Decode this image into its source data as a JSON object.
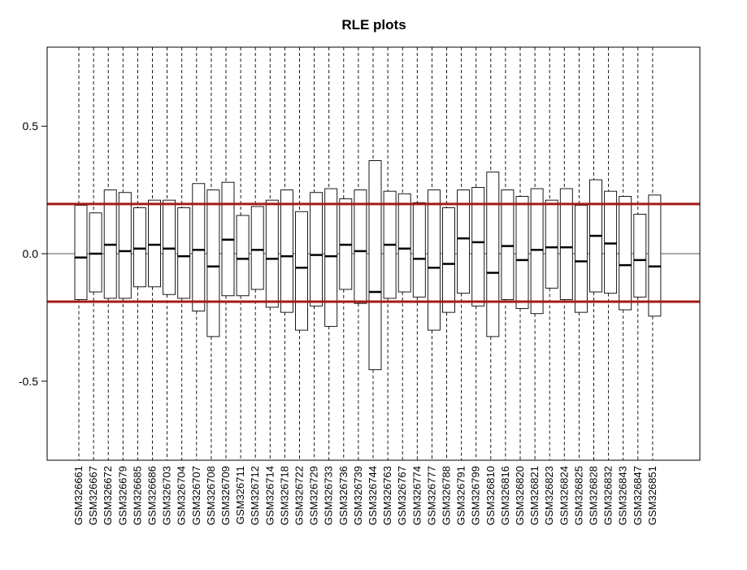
{
  "chart_data": {
    "type": "boxplot",
    "title": "RLE plots",
    "xlabel": "",
    "ylabel": "",
    "ylim": [
      -0.81,
      0.81
    ],
    "yticks": [
      -0.5,
      0.0,
      0.5
    ],
    "ytick_labels": [
      "-0.5",
      "0.0",
      "0.5"
    ],
    "zero_line": 0,
    "reference_lines": [
      0.195,
      -0.188
    ],
    "reference_line_color": "#a51a1a",
    "whiskers_extend_beyond_plot": true,
    "categories": [
      "GSM326661",
      "GSM326667",
      "GSM326672",
      "GSM326679",
      "GSM326685",
      "GSM326686",
      "GSM326703",
      "GSM326704",
      "GSM326707",
      "GSM326708",
      "GSM326709",
      "GSM326711",
      "GSM326712",
      "GSM326714",
      "GSM326718",
      "GSM326722",
      "GSM326729",
      "GSM326733",
      "GSM326736",
      "GSM326739",
      "GSM326744",
      "GSM326763",
      "GSM326767",
      "GSM326774",
      "GSM326777",
      "GSM326788",
      "GSM326791",
      "GSM326799",
      "GSM326810",
      "GSM326816",
      "GSM326820",
      "GSM326821",
      "GSM326823",
      "GSM326824",
      "GSM326825",
      "GSM326828",
      "GSM326832",
      "GSM326843",
      "GSM326847",
      "GSM326851"
    ],
    "q1": [
      -0.18,
      -0.15,
      -0.175,
      -0.175,
      -0.13,
      -0.13,
      -0.16,
      -0.175,
      -0.225,
      -0.325,
      -0.165,
      -0.165,
      -0.14,
      -0.21,
      -0.23,
      -0.3,
      -0.205,
      -0.285,
      -0.14,
      -0.195,
      -0.455,
      -0.175,
      -0.15,
      -0.17,
      -0.3,
      -0.23,
      -0.155,
      -0.205,
      -0.325,
      -0.18,
      -0.215,
      -0.235,
      -0.135,
      -0.18,
      -0.23,
      -0.15,
      -0.155,
      -0.22,
      -0.17,
      -0.245
    ],
    "median": [
      -0.015,
      0.0,
      0.035,
      0.01,
      0.02,
      0.035,
      0.02,
      -0.01,
      0.015,
      -0.05,
      0.055,
      -0.02,
      0.015,
      -0.02,
      -0.01,
      -0.055,
      -0.005,
      -0.01,
      0.035,
      0.01,
      -0.15,
      0.035,
      0.02,
      -0.02,
      -0.055,
      -0.04,
      0.06,
      0.045,
      -0.075,
      0.03,
      -0.025,
      0.015,
      0.025,
      0.025,
      -0.03,
      0.07,
      0.04,
      -0.045,
      -0.025,
      -0.05
    ],
    "q3": [
      0.19,
      0.16,
      0.25,
      0.24,
      0.18,
      0.21,
      0.21,
      0.18,
      0.275,
      0.25,
      0.28,
      0.15,
      0.185,
      0.21,
      0.25,
      0.165,
      0.24,
      0.255,
      0.215,
      0.25,
      0.365,
      0.245,
      0.235,
      0.2,
      0.25,
      0.18,
      0.25,
      0.26,
      0.32,
      0.25,
      0.225,
      0.255,
      0.21,
      0.255,
      0.19,
      0.29,
      0.245,
      0.225,
      0.155,
      0.23
    ]
  }
}
